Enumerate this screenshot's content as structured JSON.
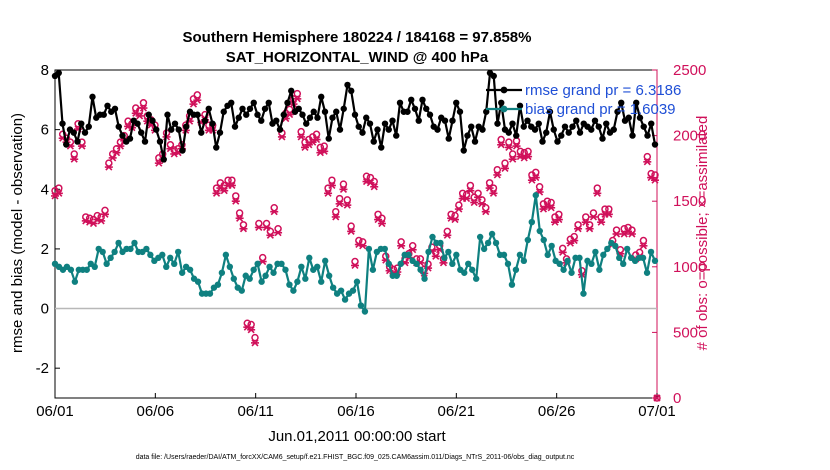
{
  "chart_data": {
    "type": "line",
    "title": "Southern Hemisphere 180224 / 184168 = 97.858%",
    "subtitle": "SAT_HORIZONTAL_WIND @ 400 hPa",
    "xlabel": "Jun.01,2011 00:00:00 start",
    "ylabel": "rmse and bias (model - observation)",
    "y2label": "# of obs: o=possible; ×=assimilated",
    "footer": "data file: /Users/raeder/DAI/ATM_forcXX/CAM6_setup/f.e21.FHIST_BGC.f09_025.CAM6assim.011/Diags_NTrS_2011-06/obs_diag_output.nc",
    "x_ticks": [
      "06/01",
      "06/06",
      "06/11",
      "06/16",
      "06/21",
      "06/26",
      "07/01"
    ],
    "x_range_days": [
      0,
      30
    ],
    "ylim": [
      -3,
      8
    ],
    "y_ticks": [
      "-2",
      "0",
      "2",
      "4",
      "6",
      "8"
    ],
    "y2lim": [
      0,
      2500
    ],
    "y2_ticks": [
      "0",
      "500",
      "1000",
      "1500",
      "2000",
      "2500"
    ],
    "zero_line": 0,
    "legend_position": "top-right",
    "colors": {
      "rmse": "#000000",
      "bias": "#0f8080",
      "obs": "#d0105a",
      "legend_text": "#1f4fd6",
      "zero_line": "#b8b8b8"
    },
    "series": [
      {
        "name": "rmse",
        "legend": "rmse grand pr = 6.3186",
        "values": [
          7.8,
          7.9,
          6.2,
          5.5,
          6.0,
          5.9,
          5.6,
          6.2,
          5.9,
          6.1,
          7.1,
          6.4,
          6.5,
          6.5,
          6.8,
          6.6,
          6.7,
          6.1,
          5.8,
          5.6,
          5.7,
          6.3,
          6.2,
          5.9,
          5.6,
          6.5,
          6.3,
          6.0,
          5.6,
          5.0,
          6.5,
          6.0,
          6.2,
          6.0,
          5.3,
          6.1,
          6.6,
          6.5,
          6.5,
          5.9,
          6.3,
          6.7,
          6.2,
          5.4,
          5.9,
          6.6,
          6.8,
          6.9,
          6.1,
          6.4,
          6.7,
          6.5,
          6.7,
          6.9,
          6.5,
          6.3,
          6.7,
          6.9,
          6.2,
          6.3,
          6.0,
          6.5,
          6.9,
          7.3,
          6.6,
          6.7,
          6.5,
          6.2,
          6.4,
          6.6,
          6.4,
          7.1,
          6.6,
          5.7,
          6.4,
          6.6,
          6.0,
          6.7,
          7.5,
          7.3,
          6.5,
          6.1,
          5.9,
          6.4,
          6.2,
          5.6,
          6.0,
          5.4,
          6.2,
          6.0,
          6.3,
          5.8,
          6.9,
          6.6,
          6.6,
          7.0,
          6.7,
          6.3,
          7.0,
          6.7,
          6.5,
          6.1,
          6.0,
          6.4,
          6.3,
          5.7,
          6.3,
          6.9,
          6.6,
          5.3,
          5.8,
          6.1,
          5.6,
          6.1,
          6.0,
          6.6,
          7.9,
          7.8,
          6.2,
          6.9,
          6.0,
          5.9,
          6.2,
          5.8,
          6.8,
          6.1,
          6.3,
          6.1,
          6.0,
          6.2,
          5.6,
          5.9,
          6.6,
          6.0,
          5.6,
          5.8,
          6.1,
          5.9,
          6.1,
          6.3,
          5.9,
          6.2,
          6.1,
          6.0,
          6.3,
          6.1,
          5.7,
          6.2,
          5.9,
          6.0,
          6.6,
          6.9,
          6.3,
          6.4,
          5.8,
          6.9,
          6.4,
          6.1,
          5.8,
          6.2,
          5.5
        ],
        "values_note": "148 cycles, 6-hourly, starting 06/01"
      },
      {
        "name": "bias",
        "legend": "bias grand pr = 1.6039",
        "values": [
          1.5,
          1.4,
          1.3,
          1.4,
          1.3,
          0.9,
          1.3,
          1.3,
          1.3,
          1.5,
          1.4,
          2.0,
          1.9,
          1.5,
          1.7,
          1.9,
          2.2,
          1.9,
          2.0,
          2.0,
          2.2,
          1.9,
          1.9,
          2.0,
          1.8,
          1.6,
          1.7,
          1.8,
          1.4,
          1.7,
          1.5,
          1.9,
          1.2,
          1.4,
          1.3,
          1.0,
          0.9,
          0.5,
          0.5,
          0.5,
          0.7,
          0.8,
          1.2,
          1.8,
          1.4,
          1.0,
          0.7,
          0.6,
          1.1,
          1.0,
          1.3,
          1.5,
          0.9,
          1.1,
          1.4,
          1.2,
          1.5,
          1.5,
          1.3,
          0.8,
          0.6,
          0.9,
          1.4,
          1.0,
          1.7,
          1.3,
          1.4,
          0.9,
          1.6,
          1.1,
          0.7,
          0.5,
          0.6,
          0.3,
          0.5,
          0.6,
          0.9,
          0.1,
          -0.1,
          2.0,
          1.3,
          1.9,
          2.0,
          2.0,
          1.5,
          1.1,
          1.1,
          1.5,
          1.8,
          1.8,
          1.6,
          1.5,
          1.3,
          1.0,
          1.9,
          2.4,
          2.2,
          2.2,
          1.7,
          1.9,
          1.5,
          1.8,
          1.3,
          1.2,
          1.5,
          1.3,
          1.0,
          2.4,
          2.0,
          2.2,
          2.5,
          2.2,
          1.8,
          1.8,
          1.5,
          0.8,
          1.3,
          1.8,
          1.6,
          2.3,
          2.9,
          3.8,
          2.6,
          2.3,
          1.8,
          2.1,
          1.6,
          1.5,
          1.3,
          1.6,
          1.2,
          1.7,
          1.7,
          0.5,
          1.6,
          1.5,
          1.9,
          1.3,
          1.8,
          2.0,
          2.2,
          2.1,
          1.7,
          1.5,
          2.0,
          1.7,
          1.6,
          1.7,
          1.7,
          1.2,
          1.9,
          1.6
        ]
      },
      {
        "name": "possible",
        "axis": "right",
        "marker": "o",
        "values": [
          1580,
          1600,
          2010,
          1980,
          1950,
          1860,
          2090,
          1950,
          1380,
          1370,
          1360,
          1390,
          1380,
          1430,
          1790,
          1860,
          1900,
          1950,
          2000,
          2110,
          2090,
          2210,
          2190,
          2250,
          2150,
          2120,
          2080,
          1830,
          1860,
          2020,
          1930,
          1890,
          1900,
          1930,
          2080,
          2150,
          2280,
          2310,
          2130,
          2160,
          2080,
          2080,
          1600,
          1640,
          1620,
          1660,
          1660,
          1540,
          1410,
          1320,
          570,
          560,
          460,
          1330,
          1070,
          1330,
          1270,
          1450,
          1290,
          2020,
          2170,
          2200,
          2280,
          2320,
          2030,
          1950,
          1970,
          1990,
          2010,
          1910,
          1920,
          1600,
          1660,
          1420,
          1520,
          1630,
          1510,
          1310,
          1040,
          1200,
          1190,
          1690,
          1680,
          1650,
          1400,
          1370,
          1080,
          1000,
          980,
          990,
          1190,
          1060,
          1100,
          1160,
          1060,
          1060,
          980,
          1020,
          1150,
          1110,
          1160,
          1060,
          1270,
          1400,
          1390,
          1470,
          1560,
          1550,
          1620,
          1530,
          1560,
          1510,
          1450,
          1640,
          1600,
          1740,
          1970,
          1790,
          1950,
          1860,
          1960,
          1880,
          1870,
          1880,
          1700,
          1720,
          1610,
          1480,
          1500,
          1490,
          1380,
          1400,
          1140,
          1060,
          1210,
          1230,
          1320,
          970,
          1380,
          1320,
          1410,
          1600,
          1380,
          1440,
          1440,
          1200,
          1280,
          1130,
          1290,
          1300,
          1280,
          1090,
          1110,
          1200,
          1840,
          1710,
          1700
        ],
        "values_note": "sampled markers; last point ~0 at 07/01"
      },
      {
        "name": "assimilated",
        "axis": "right",
        "marker": "x",
        "values": [
          1540,
          1560,
          1980,
          1950,
          1920,
          1820,
          2050,
          1920,
          1350,
          1340,
          1330,
          1360,
          1350,
          1400,
          1760,
          1830,
          1870,
          1920,
          1960,
          2070,
          2060,
          2170,
          2150,
          2210,
          2110,
          2080,
          2040,
          1790,
          1820,
          1990,
          1900,
          1860,
          1870,
          1900,
          2040,
          2110,
          2240,
          2270,
          2100,
          2120,
          2040,
          2040,
          1560,
          1600,
          1580,
          1620,
          1620,
          1500,
          1370,
          1290,
          540,
          520,
          420,
          1300,
          1040,
          1300,
          1240,
          1420,
          1260,
          1990,
          2130,
          2160,
          2240,
          2280,
          1990,
          1910,
          1930,
          1950,
          1970,
          1870,
          1880,
          1560,
          1620,
          1380,
          1480,
          1590,
          1470,
          1270,
          1010,
          1170,
          1160,
          1650,
          1640,
          1610,
          1360,
          1330,
          1050,
          970,
          950,
          960,
          1160,
          1030,
          1070,
          1130,
          1030,
          1030,
          950,
          990,
          1120,
          1080,
          1130,
          1030,
          1240,
          1370,
          1360,
          1440,
          1520,
          1520,
          1580,
          1490,
          1530,
          1480,
          1420,
          1600,
          1560,
          1700,
          1930,
          1750,
          1910,
          1820,
          1920,
          1840,
          1830,
          1840,
          1660,
          1680,
          1570,
          1440,
          1460,
          1450,
          1340,
          1360,
          1110,
          1030,
          1180,
          1200,
          1290,
          940,
          1340,
          1290,
          1380,
          1560,
          1340,
          1400,
          1400,
          1170,
          1250,
          1100,
          1250,
          1270,
          1250,
          1060,
          1080,
          1160,
          1800,
          1680,
          1660
        ]
      }
    ]
  }
}
